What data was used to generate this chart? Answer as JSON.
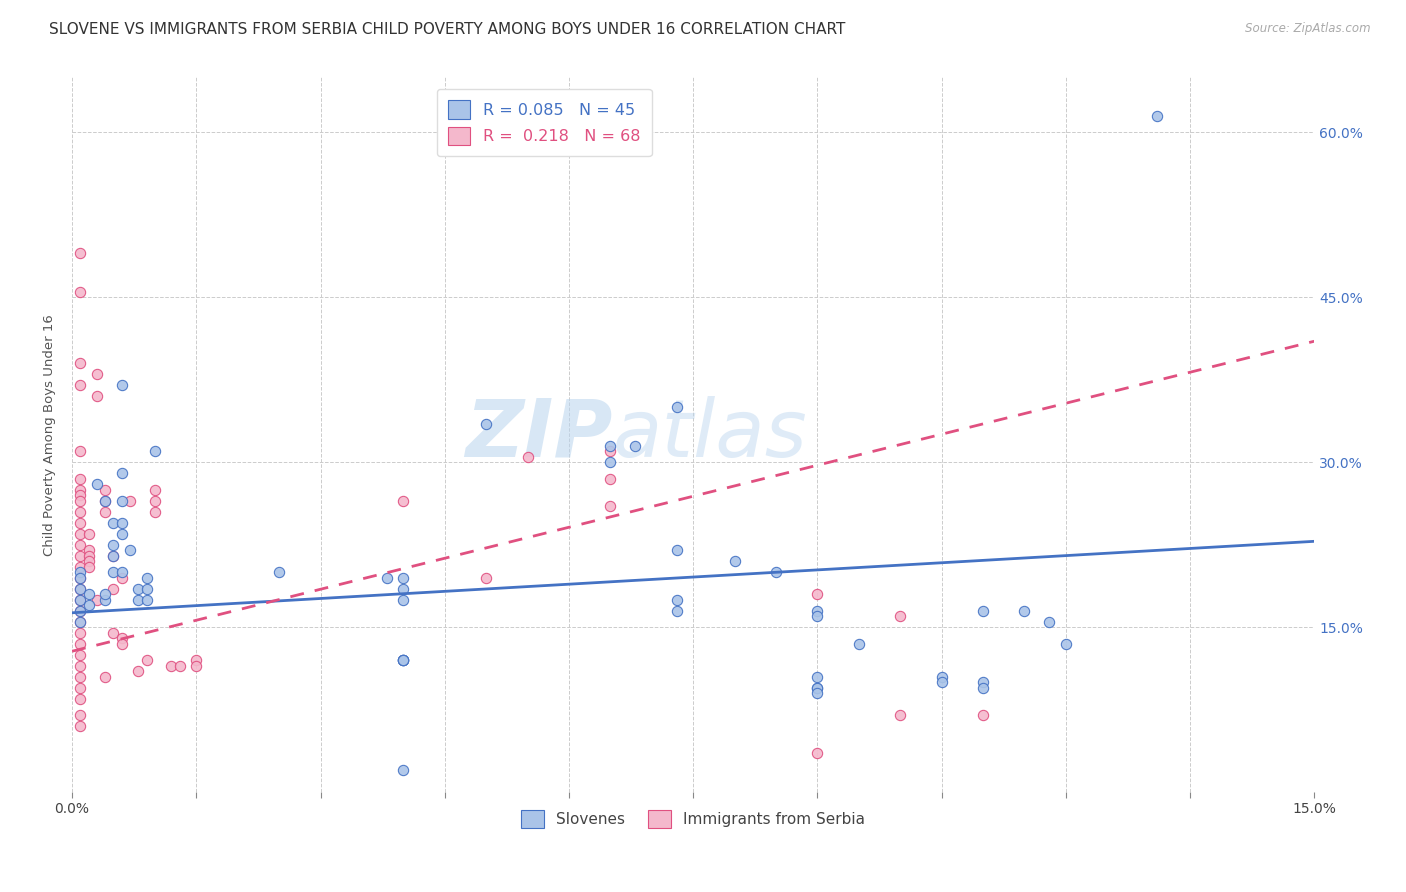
{
  "title": "SLOVENE VS IMMIGRANTS FROM SERBIA CHILD POVERTY AMONG BOYS UNDER 16 CORRELATION CHART",
  "source": "Source: ZipAtlas.com",
  "ylabel": "Child Poverty Among Boys Under 16",
  "xlim": [
    0.0,
    0.15
  ],
  "ylim": [
    0.0,
    0.65
  ],
  "xtick_labels": [
    "0.0%",
    "",
    "",
    "",
    "",
    "",
    "",
    "",
    "",
    "",
    "15.0%"
  ],
  "xtick_values": [
    0.0,
    0.015,
    0.03,
    0.045,
    0.06,
    0.075,
    0.09,
    0.105,
    0.12,
    0.135,
    0.15
  ],
  "ytick_labels": [
    "15.0%",
    "30.0%",
    "45.0%",
    "60.0%"
  ],
  "ytick_values": [
    0.15,
    0.3,
    0.45,
    0.6
  ],
  "watermark_part1": "ZIP",
  "watermark_part2": "atlas",
  "blue_scatter": [
    [
      0.001,
      0.2
    ],
    [
      0.001,
      0.195
    ],
    [
      0.001,
      0.185
    ],
    [
      0.001,
      0.175
    ],
    [
      0.001,
      0.165
    ],
    [
      0.001,
      0.155
    ],
    [
      0.002,
      0.18
    ],
    [
      0.002,
      0.17
    ],
    [
      0.003,
      0.28
    ],
    [
      0.004,
      0.265
    ],
    [
      0.004,
      0.175
    ],
    [
      0.004,
      0.18
    ],
    [
      0.005,
      0.245
    ],
    [
      0.005,
      0.225
    ],
    [
      0.005,
      0.215
    ],
    [
      0.005,
      0.2
    ],
    [
      0.006,
      0.37
    ],
    [
      0.006,
      0.29
    ],
    [
      0.006,
      0.265
    ],
    [
      0.006,
      0.245
    ],
    [
      0.006,
      0.235
    ],
    [
      0.006,
      0.2
    ],
    [
      0.007,
      0.22
    ],
    [
      0.008,
      0.185
    ],
    [
      0.008,
      0.175
    ],
    [
      0.009,
      0.195
    ],
    [
      0.009,
      0.185
    ],
    [
      0.009,
      0.175
    ],
    [
      0.01,
      0.31
    ],
    [
      0.025,
      0.2
    ],
    [
      0.038,
      0.195
    ],
    [
      0.04,
      0.195
    ],
    [
      0.04,
      0.185
    ],
    [
      0.04,
      0.175
    ],
    [
      0.04,
      0.12
    ],
    [
      0.04,
      0.12
    ],
    [
      0.04,
      0.12
    ],
    [
      0.04,
      0.12
    ],
    [
      0.04,
      0.02
    ],
    [
      0.05,
      0.335
    ],
    [
      0.065,
      0.315
    ],
    [
      0.065,
      0.3
    ],
    [
      0.068,
      0.315
    ],
    [
      0.073,
      0.35
    ],
    [
      0.073,
      0.22
    ],
    [
      0.073,
      0.175
    ],
    [
      0.073,
      0.165
    ],
    [
      0.08,
      0.21
    ],
    [
      0.085,
      0.2
    ],
    [
      0.09,
      0.165
    ],
    [
      0.09,
      0.16
    ],
    [
      0.09,
      0.105
    ],
    [
      0.09,
      0.095
    ],
    [
      0.09,
      0.095
    ],
    [
      0.09,
      0.09
    ],
    [
      0.095,
      0.135
    ],
    [
      0.105,
      0.105
    ],
    [
      0.105,
      0.1
    ],
    [
      0.11,
      0.165
    ],
    [
      0.11,
      0.1
    ],
    [
      0.11,
      0.095
    ],
    [
      0.115,
      0.165
    ],
    [
      0.118,
      0.155
    ],
    [
      0.12,
      0.135
    ],
    [
      0.131,
      0.615
    ]
  ],
  "pink_scatter": [
    [
      0.001,
      0.49
    ],
    [
      0.001,
      0.455
    ],
    [
      0.001,
      0.39
    ],
    [
      0.001,
      0.37
    ],
    [
      0.001,
      0.31
    ],
    [
      0.001,
      0.285
    ],
    [
      0.001,
      0.275
    ],
    [
      0.001,
      0.27
    ],
    [
      0.001,
      0.265
    ],
    [
      0.001,
      0.255
    ],
    [
      0.001,
      0.245
    ],
    [
      0.001,
      0.235
    ],
    [
      0.001,
      0.225
    ],
    [
      0.001,
      0.215
    ],
    [
      0.001,
      0.205
    ],
    [
      0.001,
      0.195
    ],
    [
      0.001,
      0.185
    ],
    [
      0.001,
      0.175
    ],
    [
      0.001,
      0.165
    ],
    [
      0.001,
      0.155
    ],
    [
      0.001,
      0.145
    ],
    [
      0.001,
      0.135
    ],
    [
      0.001,
      0.125
    ],
    [
      0.001,
      0.115
    ],
    [
      0.001,
      0.105
    ],
    [
      0.001,
      0.095
    ],
    [
      0.001,
      0.085
    ],
    [
      0.001,
      0.07
    ],
    [
      0.001,
      0.06
    ],
    [
      0.002,
      0.235
    ],
    [
      0.002,
      0.22
    ],
    [
      0.002,
      0.215
    ],
    [
      0.002,
      0.21
    ],
    [
      0.002,
      0.205
    ],
    [
      0.003,
      0.38
    ],
    [
      0.003,
      0.36
    ],
    [
      0.003,
      0.175
    ],
    [
      0.004,
      0.275
    ],
    [
      0.004,
      0.265
    ],
    [
      0.004,
      0.255
    ],
    [
      0.004,
      0.105
    ],
    [
      0.005,
      0.215
    ],
    [
      0.005,
      0.185
    ],
    [
      0.005,
      0.145
    ],
    [
      0.006,
      0.195
    ],
    [
      0.006,
      0.14
    ],
    [
      0.006,
      0.135
    ],
    [
      0.007,
      0.265
    ],
    [
      0.008,
      0.11
    ],
    [
      0.009,
      0.12
    ],
    [
      0.01,
      0.275
    ],
    [
      0.01,
      0.265
    ],
    [
      0.01,
      0.255
    ],
    [
      0.012,
      0.115
    ],
    [
      0.013,
      0.115
    ],
    [
      0.015,
      0.12
    ],
    [
      0.015,
      0.115
    ],
    [
      0.04,
      0.265
    ],
    [
      0.05,
      0.195
    ],
    [
      0.055,
      0.305
    ],
    [
      0.065,
      0.31
    ],
    [
      0.065,
      0.285
    ],
    [
      0.065,
      0.26
    ],
    [
      0.09,
      0.18
    ],
    [
      0.09,
      0.035
    ],
    [
      0.1,
      0.16
    ],
    [
      0.1,
      0.07
    ],
    [
      0.11,
      0.07
    ]
  ],
  "blue_line": {
    "x": [
      0.0,
      0.15
    ],
    "y": [
      0.163,
      0.228
    ]
  },
  "pink_line": {
    "x": [
      0.0,
      0.15
    ],
    "y": [
      0.128,
      0.41
    ]
  },
  "blue_color": "#4472c4",
  "pink_color": "#e05080",
  "blue_scatter_color": "#aac4e8",
  "pink_scatter_color": "#f4b8cc",
  "title_fontsize": 11,
  "axis_label_fontsize": 9.5,
  "tick_fontsize": 10
}
